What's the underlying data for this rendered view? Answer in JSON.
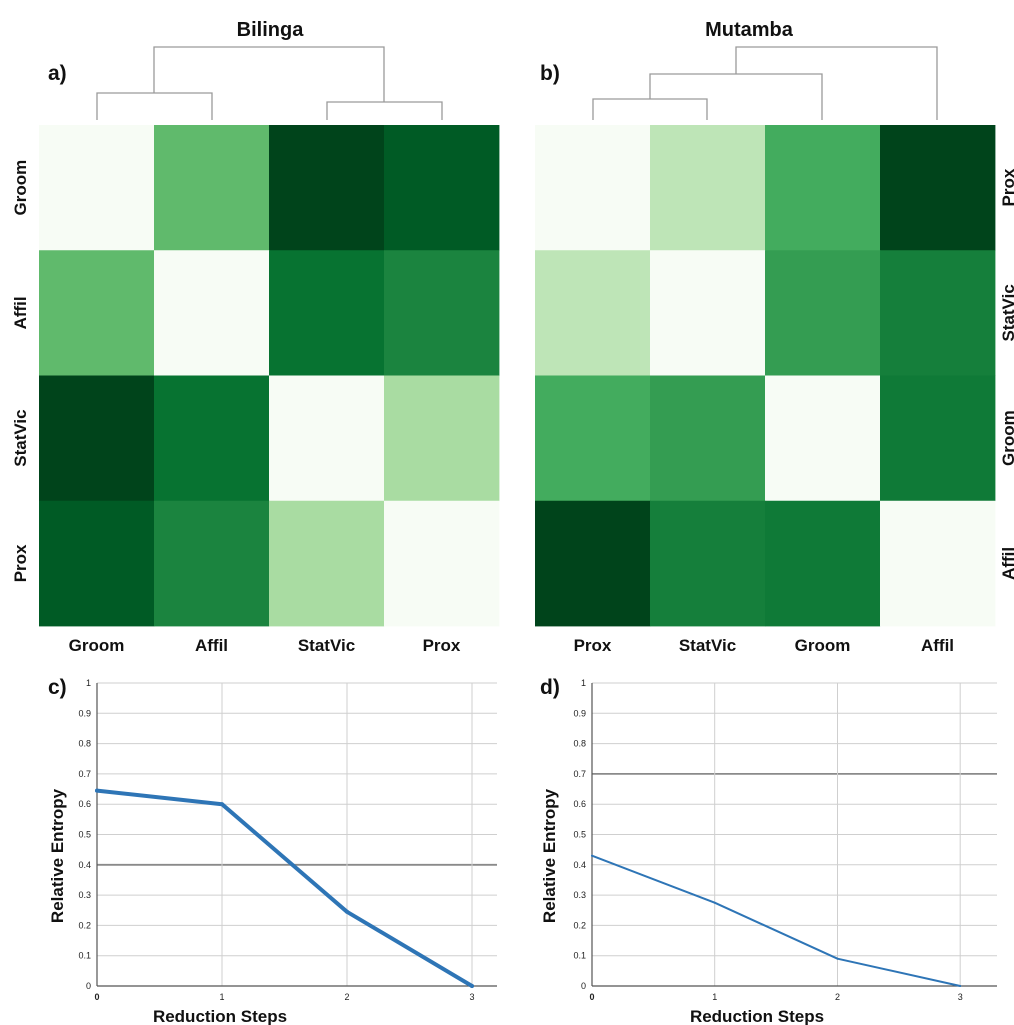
{
  "panels": {
    "a": "a)",
    "b": "b)",
    "c": "c)",
    "d": "d)"
  },
  "colormap": [
    "#f7fcf5",
    "#e5f5e0",
    "#c7e9c0",
    "#a1d99b",
    "#74c476",
    "#41ab5d",
    "#238b45",
    "#006d2c",
    "#00441b"
  ],
  "chart_data": [
    {
      "type": "heatmap",
      "title": "Bilinga",
      "row_labels": [
        "Groom",
        "Affil",
        "StatVic",
        "Prox"
      ],
      "col_labels": [
        "Groom",
        "Affil",
        "StatVic",
        "Prox"
      ],
      "values": [
        [
          0.0,
          0.55,
          1.0,
          0.93
        ],
        [
          0.55,
          0.0,
          0.85,
          0.78
        ],
        [
          1.0,
          0.85,
          0.0,
          0.35
        ],
        [
          0.93,
          0.78,
          0.35,
          0.0
        ]
      ],
      "dendrogram": true
    },
    {
      "type": "heatmap",
      "title": "Mutamba",
      "row_labels": [
        "Prox",
        "StatVic",
        "Groom",
        "Affil"
      ],
      "col_labels": [
        "Prox",
        "StatVic",
        "Groom",
        "Affil"
      ],
      "values": [
        [
          0.0,
          0.28,
          0.62,
          1.0
        ],
        [
          0.28,
          0.0,
          0.68,
          0.8
        ],
        [
          0.62,
          0.68,
          0.0,
          0.82
        ],
        [
          1.0,
          0.8,
          0.82,
          0.0
        ]
      ],
      "dendrogram": true
    },
    {
      "type": "line",
      "x": [
        0,
        1,
        2,
        3
      ],
      "values": [
        0.645,
        0.6,
        0.245,
        0.0
      ],
      "xlabel": "Reduction Steps",
      "ylabel": "Relative Entropy",
      "xlim": [
        0,
        3.2
      ],
      "ylim": [
        0,
        1
      ],
      "yticks": [
        0,
        0.1,
        0.2,
        0.3,
        0.4,
        0.5,
        0.6,
        0.7,
        0.8,
        0.9,
        1
      ],
      "xticks": [
        0,
        1,
        2,
        3
      ],
      "color": "#2e75b6",
      "grid": true
    },
    {
      "type": "line",
      "x": [
        0,
        1,
        2,
        3
      ],
      "values": [
        0.43,
        0.275,
        0.09,
        0.0
      ],
      "xlabel": "Reduction Steps",
      "ylabel": "Relative Entropy",
      "xlim": [
        0,
        3.3
      ],
      "ylim": [
        0,
        1
      ],
      "yticks": [
        0,
        0.1,
        0.2,
        0.3,
        0.4,
        0.5,
        0.6,
        0.7,
        0.8,
        0.9,
        1
      ],
      "xticks": [
        0,
        1,
        2,
        3
      ],
      "color": "#2e75b6",
      "grid": true
    }
  ]
}
